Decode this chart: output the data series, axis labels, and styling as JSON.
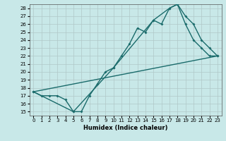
{
  "title": "",
  "xlabel": "Humidex (Indice chaleur)",
  "bg_color": "#c8e8e8",
  "grid_color": "#b0c8c8",
  "line_color": "#1a6b6b",
  "xlim": [
    -0.5,
    23.5
  ],
  "ylim": [
    14.5,
    28.5
  ],
  "xticks": [
    0,
    1,
    2,
    3,
    4,
    5,
    6,
    7,
    8,
    9,
    10,
    11,
    12,
    13,
    14,
    15,
    16,
    17,
    18,
    19,
    20,
    21,
    22,
    23
  ],
  "yticks": [
    15,
    16,
    17,
    18,
    19,
    20,
    21,
    22,
    23,
    24,
    25,
    26,
    27,
    28
  ],
  "line1_x": [
    0,
    1,
    2,
    3,
    4,
    5,
    6,
    7,
    8,
    9,
    10,
    11,
    12,
    13,
    14,
    15,
    16,
    17,
    18,
    19,
    20,
    21,
    22,
    23
  ],
  "line1_y": [
    17.5,
    17.0,
    17.0,
    17.0,
    16.5,
    15.0,
    15.0,
    17.0,
    18.5,
    20.0,
    20.5,
    22.0,
    23.5,
    25.5,
    25.0,
    26.5,
    26.0,
    28.0,
    28.5,
    26.0,
    24.0,
    23.0,
    22.0,
    22.0
  ],
  "line2_x": [
    0,
    5,
    10,
    15,
    17,
    18,
    19,
    20,
    21,
    22,
    23
  ],
  "line2_y": [
    17.5,
    15.0,
    20.5,
    26.5,
    28.0,
    28.5,
    27.0,
    26.0,
    24.0,
    23.0,
    22.0
  ],
  "line3_x": [
    0,
    23
  ],
  "line3_y": [
    17.5,
    22.0
  ]
}
